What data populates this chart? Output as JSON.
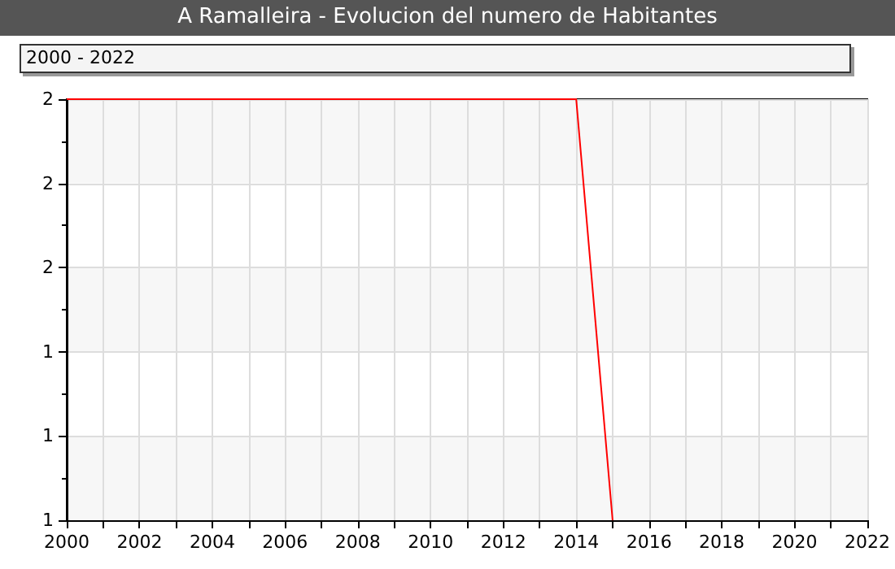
{
  "chart_data": {
    "type": "line",
    "title": "A Ramalleira - Evolucion del numero de Habitantes",
    "subtitle": "2000 - 2022",
    "x": [
      2000,
      2001,
      2002,
      2003,
      2004,
      2005,
      2006,
      2007,
      2008,
      2009,
      2010,
      2011,
      2012,
      2013,
      2014,
      2015
    ],
    "series": [
      {
        "color": "#ff0000",
        "values": [
          2,
          2,
          2,
          2,
          2,
          2,
          2,
          2,
          2,
          2,
          2,
          2,
          2,
          2,
          2,
          1
        ]
      }
    ],
    "xlim": [
      2000,
      2022
    ],
    "xticks": [
      2000,
      {
        "value": 2001,
        "label": null
      },
      2002,
      {
        "value": 2003,
        "label": null
      },
      2004,
      {
        "value": 2005,
        "label": null
      },
      2006,
      {
        "value": 2007,
        "label": null
      },
      2008,
      {
        "value": 2009,
        "label": null
      },
      2010,
      {
        "value": 2011,
        "label": null
      },
      2012,
      {
        "value": 2013,
        "label": null
      },
      2014,
      {
        "value": 2015,
        "label": null
      },
      2016,
      {
        "value": 2017,
        "label": null
      },
      2018,
      {
        "value": 2019,
        "label": null
      },
      2020,
      {
        "value": 2021,
        "label": null
      },
      2022
    ],
    "ylim": [
      1,
      2
    ],
    "yticks": [
      1,
      {
        "value": 1.2,
        "label": "1"
      },
      {
        "value": 1.4,
        "label": "1"
      },
      {
        "value": 1.6,
        "label": "2"
      },
      {
        "value": 1.8,
        "label": "2"
      },
      2
    ],
    "grid": true,
    "marker": "none",
    "line_style": "solid"
  }
}
